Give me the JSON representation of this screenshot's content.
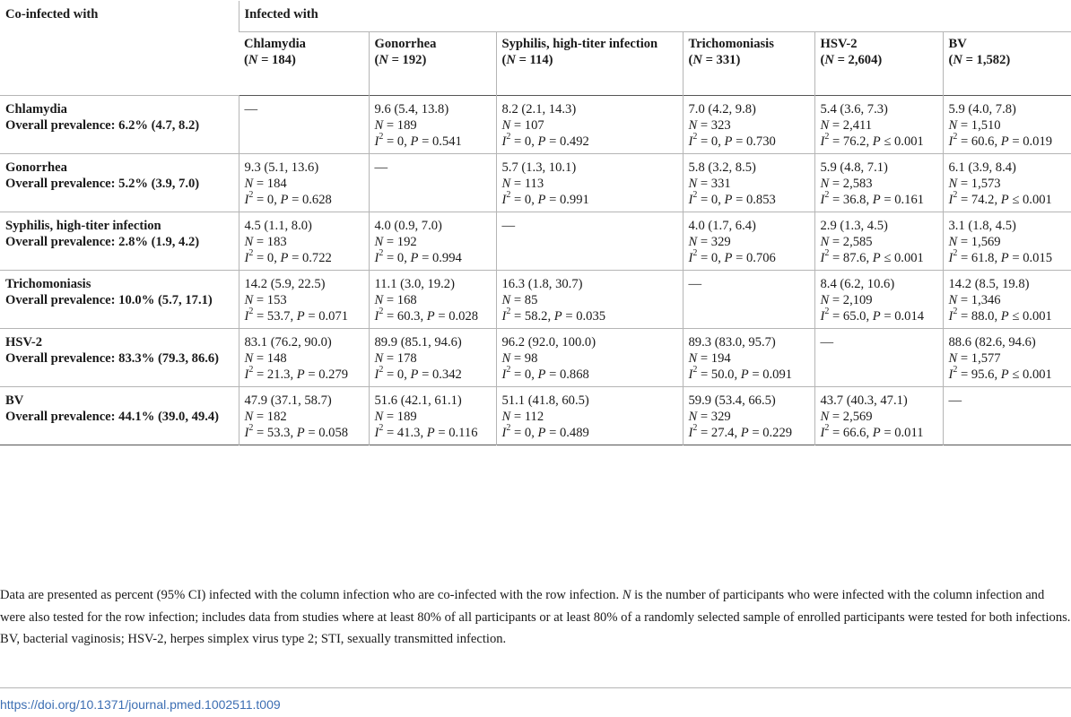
{
  "table": {
    "corner_header": "Co-infected with",
    "group_header": "Infected with",
    "columns": [
      {
        "name": "Chlamydia",
        "n": "184"
      },
      {
        "name": "Gonorrhea",
        "n": "192"
      },
      {
        "name": "Syphilis, high-titer infection",
        "n": "114"
      },
      {
        "name": "Trichomoniasis",
        "n": "331"
      },
      {
        "name": "HSV-2",
        "n": "2,604"
      },
      {
        "name": "BV",
        "n": "1,582"
      }
    ],
    "rows": [
      {
        "name": "Chlamydia",
        "prevalence": "Overall prevalence: 6.2% (4.7, 8.2)",
        "cells": [
          {
            "dash": "—"
          },
          {
            "ci": "9.6 (5.4, 13.8)",
            "n": "189",
            "i2": "0",
            "p": "0.541"
          },
          {
            "ci": "8.2 (2.1, 14.3)",
            "n": "107",
            "i2": "0",
            "p": "0.492"
          },
          {
            "ci": "7.0 (4.2, 9.8)",
            "n": "323",
            "i2": "0",
            "p": "0.730"
          },
          {
            "ci": "5.4 (3.6, 7.3)",
            "n": "2,411",
            "i2": "76.2",
            "p": "0.001",
            "p_rel": "≤"
          },
          {
            "ci": "5.9 (4.0, 7.8)",
            "n": "1,510",
            "i2": "60.6",
            "p": "0.019"
          }
        ]
      },
      {
        "name": "Gonorrhea",
        "prevalence": "Overall prevalence: 5.2% (3.9, 7.0)",
        "cells": [
          {
            "ci": "9.3 (5.1, 13.6)",
            "n": "184",
            "i2": "0",
            "p": "0.628"
          },
          {
            "dash": "—"
          },
          {
            "ci": "5.7 (1.3, 10.1)",
            "n": "113",
            "i2": "0",
            "p": "0.991"
          },
          {
            "ci": "5.8 (3.2, 8.5)",
            "n": "331",
            "i2": "0",
            "p": "0.853"
          },
          {
            "ci": "5.9 (4.8, 7.1)",
            "n": "2,583",
            "i2": "36.8",
            "p": "0.161"
          },
          {
            "ci": "6.1 (3.9, 8.4)",
            "n": "1,573",
            "i2": "74.2",
            "p": "0.001",
            "p_rel": "≤"
          }
        ]
      },
      {
        "name": "Syphilis, high-titer infection",
        "prevalence": "Overall prevalence: 2.8% (1.9, 4.2)",
        "cells": [
          {
            "ci": "4.5 (1.1, 8.0)",
            "n": "183",
            "i2": "0",
            "p": "0.722"
          },
          {
            "ci": "4.0 (0.9, 7.0)",
            "n": "192",
            "i2": "0",
            "p": "0.994"
          },
          {
            "dash": "—"
          },
          {
            "ci": "4.0 (1.7, 6.4)",
            "n": "329",
            "i2": "0",
            "p": "0.706"
          },
          {
            "ci": "2.9 (1.3, 4.5)",
            "n": "2,585",
            "i2": "87.6",
            "p": "0.001",
            "p_rel": "≤"
          },
          {
            "ci": "3.1 (1.8, 4.5)",
            "n": "1,569",
            "i2": "61.8",
            "p": "0.015"
          }
        ]
      },
      {
        "name": "Trichomoniasis",
        "prevalence": "Overall prevalence: 10.0% (5.7, 17.1)",
        "cells": [
          {
            "ci": "14.2 (5.9, 22.5)",
            "n": "153",
            "i2": "53.7",
            "p": "0.071"
          },
          {
            "ci": "11.1 (3.0, 19.2)",
            "n": "168",
            "i2": "60.3",
            "p": "0.028"
          },
          {
            "ci": "16.3 (1.8, 30.7)",
            "n": "85",
            "i2": "58.2",
            "p": "0.035"
          },
          {
            "dash": "—"
          },
          {
            "ci": "8.4 (6.2, 10.6)",
            "n": "2,109",
            "i2": "65.0",
            "p": "0.014"
          },
          {
            "ci": "14.2 (8.5, 19.8)",
            "n": "1,346",
            "i2": "88.0",
            "p": "0.001",
            "p_rel": "≤"
          }
        ]
      },
      {
        "name": "HSV-2",
        "prevalence": "Overall prevalence: 83.3% (79.3, 86.6)",
        "cells": [
          {
            "ci": "83.1 (76.2, 90.0)",
            "n": "148",
            "i2": "21.3",
            "p": "0.279"
          },
          {
            "ci": "89.9 (85.1, 94.6)",
            "n": "178",
            "i2": "0",
            "p": "0.342"
          },
          {
            "ci": "96.2 (92.0, 100.0)",
            "n": "98",
            "i2": "0",
            "p": "0.868"
          },
          {
            "ci": "89.3 (83.0, 95.7)",
            "n": "194",
            "i2": "50.0",
            "p": "0.091"
          },
          {
            "dash": "—"
          },
          {
            "ci": "88.6 (82.6, 94.6)",
            "n": "1,577",
            "i2": "95.6",
            "p": "0.001",
            "p_rel": "≤"
          }
        ]
      },
      {
        "name": "BV",
        "prevalence": "Overall prevalence: 44.1% (39.0, 49.4)",
        "cells": [
          {
            "ci": "47.9 (37.1, 58.7)",
            "n": "182",
            "i2": "53.3",
            "p": "0.058"
          },
          {
            "ci": "51.6 (42.1, 61.1)",
            "n": "189",
            "i2": "41.3",
            "p": "0.116"
          },
          {
            "ci": "51.1 (41.8, 60.5)",
            "n": "112",
            "i2": "0",
            "p": "0.489"
          },
          {
            "ci": "59.9 (53.4, 66.5)",
            "n": "329",
            "i2": "27.4",
            "p": "0.229"
          },
          {
            "ci": "43.7 (40.3, 47.1)",
            "n": "2,569",
            "i2": "66.6",
            "p": "0.011"
          },
          {
            "dash": "—"
          }
        ]
      }
    ]
  },
  "footnote": {
    "main_parts": [
      "Data are presented as percent (95% CI) infected with the column infection who are co-infected with the row infection. ",
      "N",
      " is the number of participants who were infected with the column infection and were also tested for the row infection; includes data from studies where at least 80% of all participants or at least 80% of a randomly selected sample of enrolled participants were tested for both infections."
    ],
    "abbreviations": "BV, bacterial vaginosis; HSV-2, herpes simplex virus type 2; STI, sexually transmitted infection."
  },
  "doi": "https://doi.org/10.1371/journal.pmed.1002511.t009",
  "colors": {
    "link": "#3d6fb3",
    "rule": "#b5b5b5"
  }
}
